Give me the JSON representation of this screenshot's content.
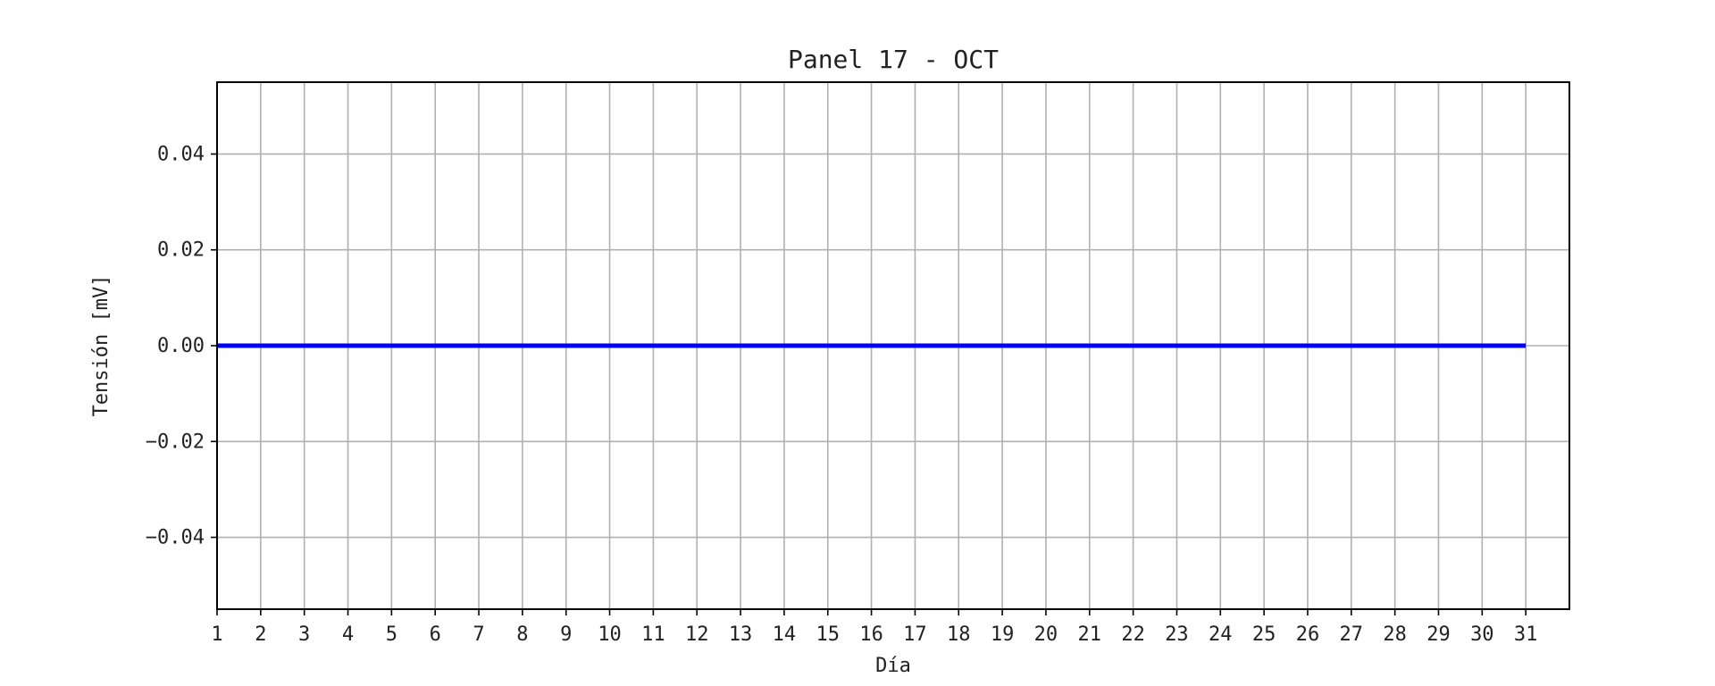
{
  "chart_data": {
    "type": "line",
    "title": "Panel 17 - OCT",
    "xlabel": "Día",
    "ylabel": "Tensión [mV]",
    "x": [
      1,
      2,
      3,
      4,
      5,
      6,
      7,
      8,
      9,
      10,
      11,
      12,
      13,
      14,
      15,
      16,
      17,
      18,
      19,
      20,
      21,
      22,
      23,
      24,
      25,
      26,
      27,
      28,
      29,
      30,
      31
    ],
    "series": [
      {
        "values": [
          0,
          0,
          0,
          0,
          0,
          0,
          0,
          0,
          0,
          0,
          0,
          0,
          0,
          0,
          0,
          0,
          0,
          0,
          0,
          0,
          0,
          0,
          0,
          0,
          0,
          0,
          0,
          0,
          0,
          0,
          0
        ],
        "color": "#0000ff"
      }
    ],
    "xlim": [
      1,
      32
    ],
    "ylim": [
      -0.055,
      0.055
    ],
    "xticks": [
      "1",
      "2",
      "3",
      "4",
      "5",
      "6",
      "7",
      "8",
      "9",
      "10",
      "11",
      "12",
      "13",
      "14",
      "15",
      "16",
      "17",
      "18",
      "19",
      "20",
      "21",
      "22",
      "23",
      "24",
      "25",
      "26",
      "27",
      "28",
      "29",
      "30",
      "31"
    ],
    "yticks": [
      {
        "value": -0.04,
        "label": "−0.04"
      },
      {
        "value": -0.02,
        "label": "−0.02"
      },
      {
        "value": 0.0,
        "label": "0.00"
      },
      {
        "value": 0.02,
        "label": "0.02"
      },
      {
        "value": 0.04,
        "label": "0.04"
      }
    ],
    "grid": true,
    "legend": "none"
  }
}
